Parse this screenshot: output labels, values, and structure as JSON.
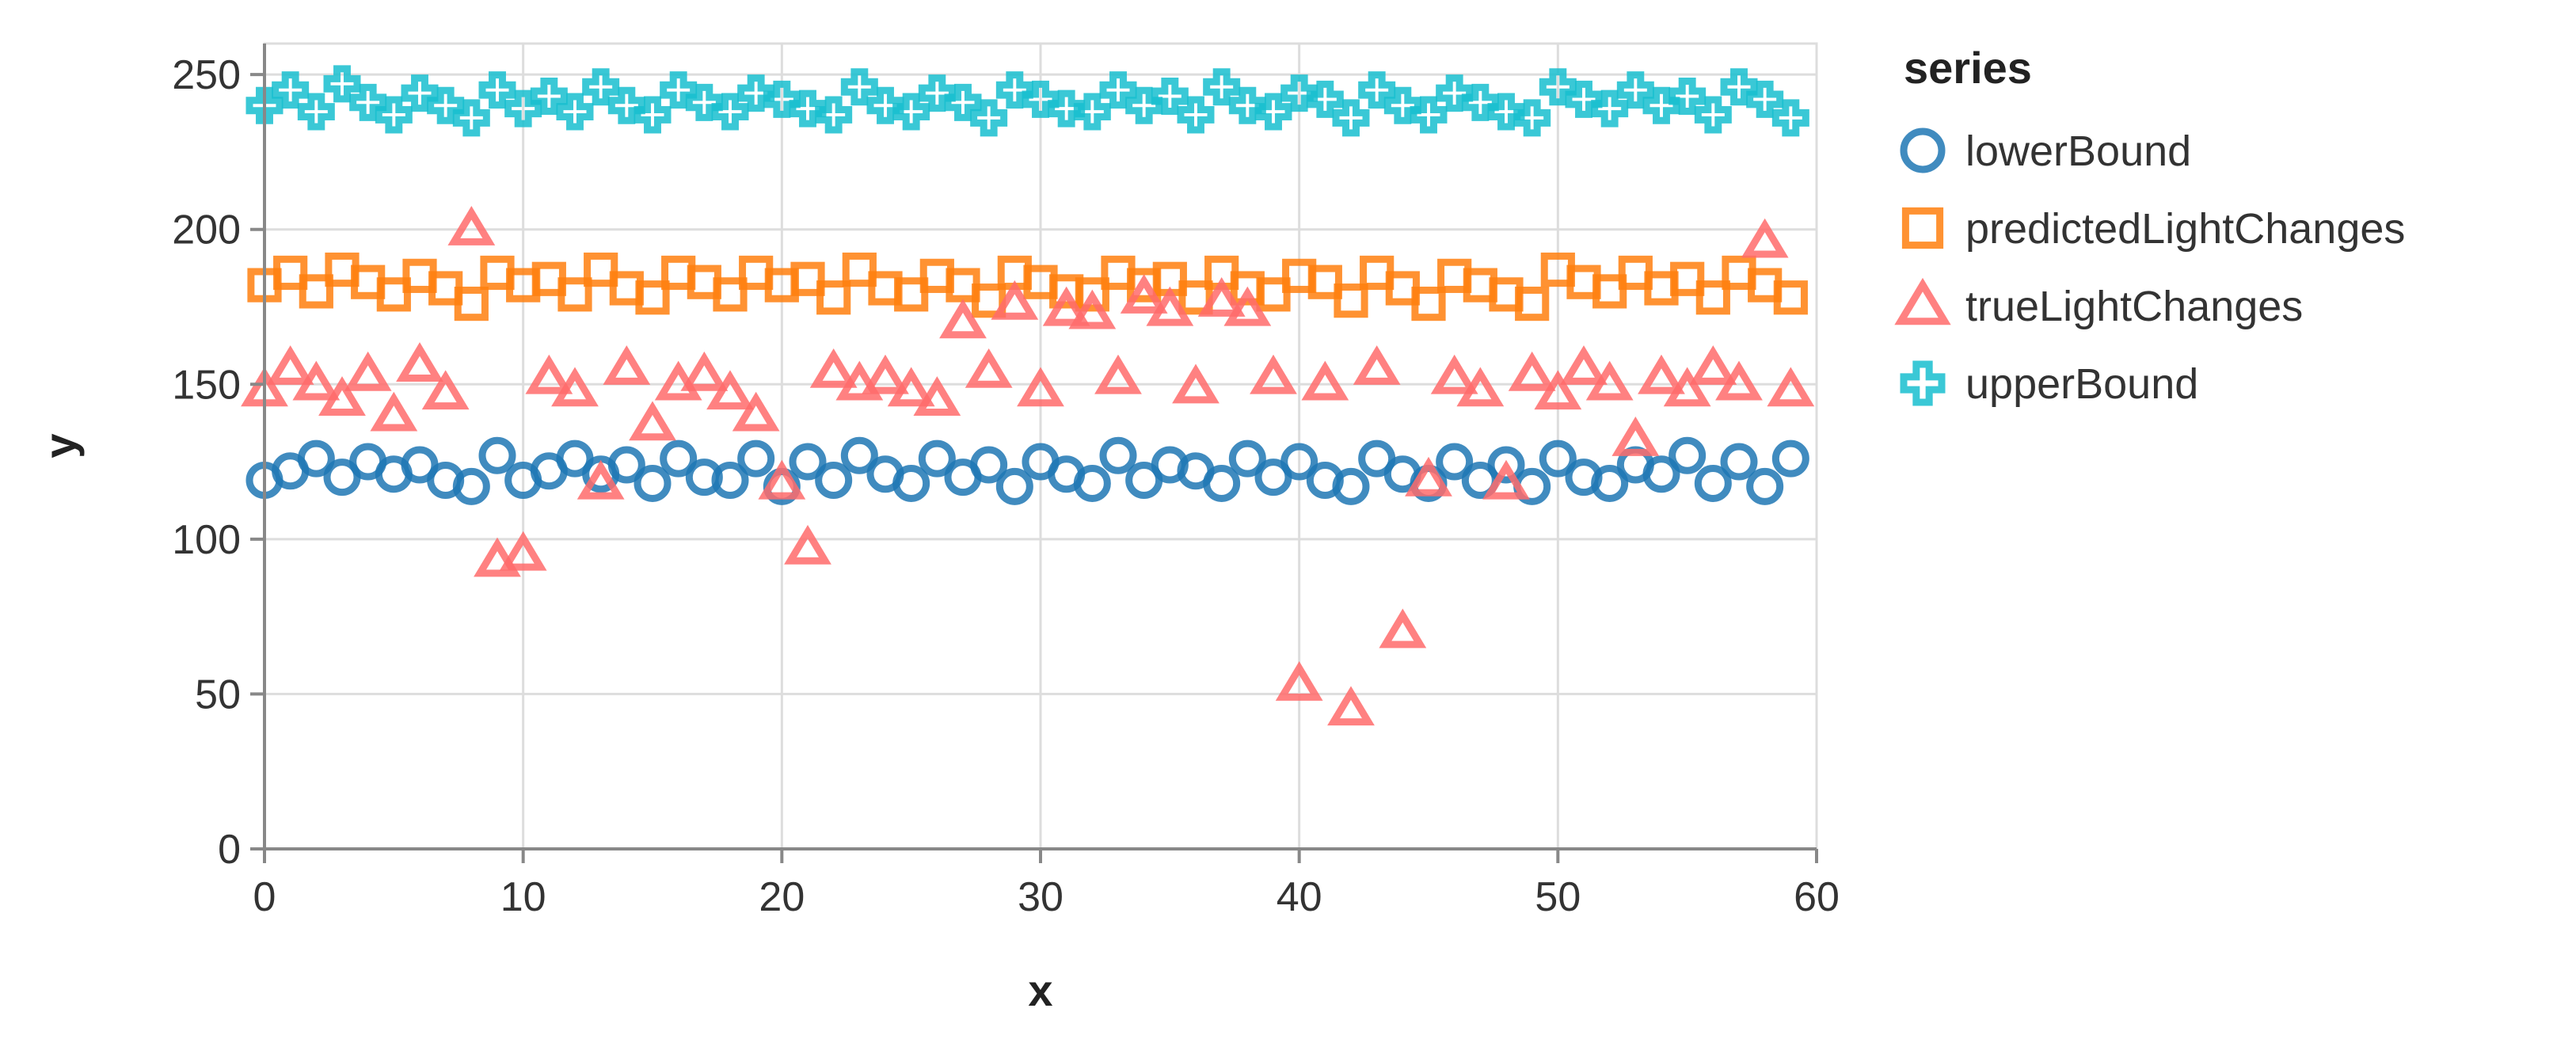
{
  "chart_data": {
    "type": "scatter",
    "xlabel": "x",
    "ylabel": "y",
    "xlim": [
      0,
      60
    ],
    "ylim": [
      0,
      260
    ],
    "xticks": [
      0,
      10,
      20,
      30,
      40,
      50,
      60
    ],
    "yticks": [
      0,
      50,
      100,
      150,
      200,
      250
    ],
    "grid": true,
    "legend": {
      "title": "series",
      "position": "right"
    },
    "series": [
      {
        "name": "lowerBound",
        "marker": "circle",
        "color": "#1f77b4",
        "x": [
          0,
          1,
          2,
          3,
          4,
          5,
          6,
          7,
          8,
          9,
          10,
          11,
          12,
          13,
          14,
          15,
          16,
          17,
          18,
          19,
          20,
          21,
          22,
          23,
          24,
          25,
          26,
          27,
          28,
          29,
          30,
          31,
          32,
          33,
          34,
          35,
          36,
          37,
          38,
          39,
          40,
          41,
          42,
          43,
          44,
          45,
          46,
          47,
          48,
          49,
          50,
          51,
          52,
          53,
          54,
          55,
          56,
          57,
          58,
          59
        ],
        "y": [
          119,
          122,
          126,
          120,
          125,
          121,
          124,
          119,
          117,
          127,
          119,
          122,
          126,
          121,
          124,
          118,
          126,
          120,
          119,
          126,
          117,
          125,
          119,
          127,
          121,
          118,
          126,
          120,
          124,
          117,
          125,
          121,
          118,
          127,
          119,
          124,
          122,
          118,
          126,
          120,
          125,
          119,
          117,
          126,
          121,
          118,
          125,
          119,
          124,
          117,
          126,
          120,
          118,
          124,
          121,
          127,
          118,
          125,
          117,
          126
        ]
      },
      {
        "name": "predictedLightChanges",
        "marker": "square",
        "color": "#ff7f0e",
        "x": [
          0,
          1,
          2,
          3,
          4,
          5,
          6,
          7,
          8,
          9,
          10,
          11,
          12,
          13,
          14,
          15,
          16,
          17,
          18,
          19,
          20,
          21,
          22,
          23,
          24,
          25,
          26,
          27,
          28,
          29,
          30,
          31,
          32,
          33,
          34,
          35,
          36,
          37,
          38,
          39,
          40,
          41,
          42,
          43,
          44,
          45,
          46,
          47,
          48,
          49,
          50,
          51,
          52,
          53,
          54,
          55,
          56,
          57,
          58,
          59
        ],
        "y": [
          182,
          186,
          180,
          187,
          183,
          179,
          185,
          181,
          176,
          186,
          182,
          184,
          179,
          187,
          181,
          178,
          186,
          183,
          179,
          186,
          182,
          184,
          178,
          187,
          181,
          179,
          185,
          182,
          177,
          186,
          183,
          180,
          179,
          186,
          182,
          184,
          178,
          186,
          181,
          179,
          185,
          183,
          177,
          186,
          181,
          176,
          185,
          182,
          179,
          176,
          187,
          183,
          180,
          186,
          181,
          184,
          178,
          186,
          182,
          178
        ]
      },
      {
        "name": "trueLightChanges",
        "marker": "triangle",
        "color": "#ff6b6b",
        "x": [
          0,
          1,
          2,
          3,
          4,
          5,
          6,
          7,
          8,
          9,
          10,
          11,
          12,
          13,
          14,
          15,
          16,
          17,
          18,
          19,
          20,
          21,
          22,
          23,
          24,
          25,
          26,
          27,
          28,
          29,
          30,
          31,
          32,
          33,
          34,
          35,
          36,
          37,
          38,
          39,
          40,
          41,
          42,
          43,
          44,
          45,
          46,
          47,
          48,
          49,
          50,
          51,
          52,
          53,
          54,
          55,
          56,
          57,
          58,
          59
        ],
        "y": [
          148,
          155,
          150,
          145,
          153,
          140,
          156,
          147,
          200,
          93,
          95,
          152,
          148,
          118,
          155,
          137,
          150,
          153,
          147,
          140,
          118,
          97,
          154,
          150,
          152,
          148,
          145,
          170,
          154,
          176,
          148,
          174,
          173,
          152,
          178,
          174,
          149,
          177,
          174,
          152,
          53,
          150,
          45,
          155,
          70,
          119,
          152,
          148,
          118,
          153,
          147,
          155,
          150,
          132,
          152,
          148,
          155,
          150,
          196,
          148
        ]
      },
      {
        "name": "upperBound",
        "marker": "cross",
        "color": "#17becf",
        "x": [
          0,
          1,
          2,
          3,
          4,
          5,
          6,
          7,
          8,
          9,
          10,
          11,
          12,
          13,
          14,
          15,
          16,
          17,
          18,
          19,
          20,
          21,
          22,
          23,
          24,
          25,
          26,
          27,
          28,
          29,
          30,
          31,
          32,
          33,
          34,
          35,
          36,
          37,
          38,
          39,
          40,
          41,
          42,
          43,
          44,
          45,
          46,
          47,
          48,
          49,
          50,
          51,
          52,
          53,
          54,
          55,
          56,
          57,
          58,
          59
        ],
        "y": [
          240,
          245,
          238,
          247,
          241,
          237,
          244,
          240,
          236,
          245,
          239,
          243,
          238,
          246,
          240,
          237,
          245,
          241,
          238,
          244,
          242,
          239,
          237,
          246,
          240,
          238,
          244,
          241,
          236,
          245,
          242,
          239,
          238,
          245,
          240,
          243,
          237,
          246,
          240,
          238,
          244,
          242,
          236,
          245,
          240,
          237,
          244,
          241,
          238,
          236,
          246,
          242,
          239,
          245,
          240,
          243,
          237,
          246,
          242,
          236
        ]
      }
    ]
  }
}
